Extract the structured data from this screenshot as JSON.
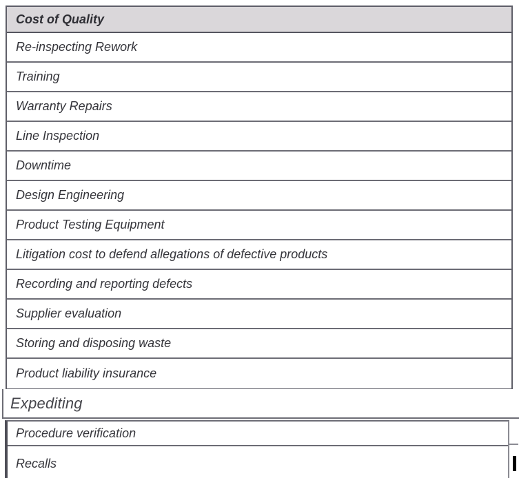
{
  "colors": {
    "header_background": "#dad7da",
    "table_border": "#5e5e68",
    "row_divider": "#6c6c75",
    "text": "#35353b",
    "cursor": "#000000"
  },
  "main_table": {
    "header": "Cost of Quality",
    "rows": [
      "Re-inspecting Rework",
      "Training",
      "Warranty Repairs",
      "Line Inspection",
      "Downtime",
      "Design Engineering",
      "Product Testing Equipment",
      "Litigation cost to defend allegations of defective products",
      "Recording and reporting defects",
      "Supplier evaluation",
      "Storing and disposing waste",
      "Product liability insurance"
    ]
  },
  "expediting_row": {
    "label": "Expediting"
  },
  "bottom_table": {
    "rows": [
      "Procedure verification",
      "Recalls"
    ]
  }
}
